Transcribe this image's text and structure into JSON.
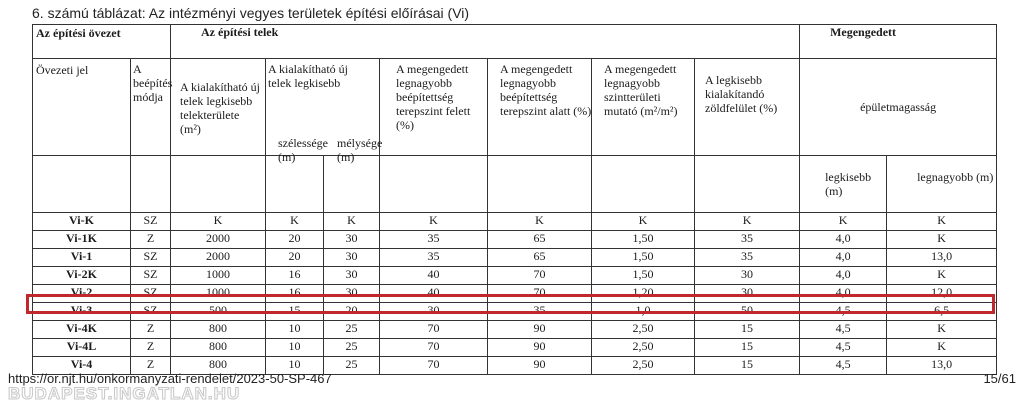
{
  "caption": "6. számú táblázat: Az intézményi vegyes területek építési előírásai (Vi)",
  "header": {
    "zone_group": "Az építési övezet",
    "plot_group": "Az építési telek",
    "allowed_group": "Megengedett",
    "zone_code": "Övezeti jel",
    "build_mode": "A beépítés módja",
    "min_plot_area": "A kialakítható új telek legkisebb telekterülete (m²)",
    "min_size_group": "A kialakítható új telek legkisebb",
    "width": "szélessége (m)",
    "depth": "mélysége (m)",
    "max_coverage_above": "A megengedett legnagyobb beépítettség terepszint felett (%)",
    "max_coverage_below": "A megengedett legnagyobb beépítettség terepszint alatt (%)",
    "max_floor_ratio": "A megengedett legnagyobb szintterületi mutató (m²/m²)",
    "min_green": "A legkisebb kialakítandó zöldfelület (%)",
    "height_group": "épületmagasság",
    "height_min": "legkisebb (m)",
    "height_max": "legnagyobb (m)"
  },
  "rows": [
    [
      "Vi-K",
      "SZ",
      "K",
      "K",
      "K",
      "K",
      "K",
      "K",
      "K",
      "K",
      "K"
    ],
    [
      "Vi-1K",
      "Z",
      "2000",
      "20",
      "30",
      "35",
      "65",
      "1,50",
      "35",
      "4,0",
      "K"
    ],
    [
      "Vi-1",
      "SZ",
      "2000",
      "20",
      "30",
      "35",
      "65",
      "1,50",
      "35",
      "4,0",
      "13,0"
    ],
    [
      "Vi-2K",
      "SZ",
      "1000",
      "16",
      "30",
      "40",
      "70",
      "1,50",
      "30",
      "4,0",
      "K"
    ],
    [
      "Vi-2",
      "SZ",
      "1000",
      "16",
      "30",
      "40",
      "70",
      "1,20",
      "30",
      "4,0",
      "12,0"
    ],
    [
      "Vi-3",
      "SZ",
      "500",
      "15",
      "20",
      "30",
      "35",
      "1,0",
      "50",
      "4,5",
      "6,5"
    ],
    [
      "Vi-4K",
      "Z",
      "800",
      "10",
      "25",
      "70",
      "90",
      "2,50",
      "15",
      "4,5",
      "K"
    ],
    [
      "Vi-4L",
      "Z",
      "800",
      "10",
      "25",
      "70",
      "90",
      "2,50",
      "15",
      "4,5",
      "K"
    ],
    [
      "Vi-4",
      "Z",
      "800",
      "10",
      "25",
      "70",
      "90",
      "2,50",
      "15",
      "4,5",
      "13,0"
    ]
  ],
  "highlight_color": "#c0282d",
  "footer": {
    "url": "https://or.njt.hu/onkormanyzati-rendelet/2023-50-SP-467",
    "page": "15/61",
    "watermark": "BUDAPEST.INGATLAN.HU"
  }
}
